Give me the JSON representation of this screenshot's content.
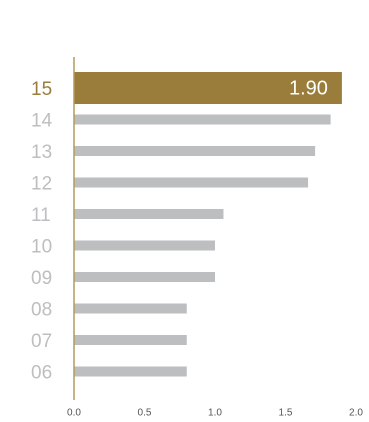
{
  "chart_data": {
    "type": "bar",
    "orientation": "horizontal",
    "categories": [
      "15",
      "14",
      "13",
      "12",
      "11",
      "10",
      "09",
      "08",
      "07",
      "06"
    ],
    "values": [
      1.9,
      1.82,
      1.71,
      1.66,
      1.06,
      1.0,
      1.0,
      0.8,
      0.8,
      0.8
    ],
    "value_labels": [
      "1.90",
      null,
      null,
      null,
      null,
      null,
      null,
      null,
      null,
      null
    ],
    "colors": [
      "#9a7d3a",
      "#bdbec0",
      "#bdbec0",
      "#bdbec0",
      "#bdbec0",
      "#bdbec0",
      "#bdbec0",
      "#bdbec0",
      "#bdbec0",
      "#bdbec0"
    ],
    "xlim": [
      0,
      2
    ],
    "xticks": [
      {
        "value": 0,
        "label": "0.0"
      },
      {
        "value": 0.5,
        "label": "0.5"
      },
      {
        "value": 1,
        "label": "1.0"
      },
      {
        "value": 1.5,
        "label": "1.5"
      },
      {
        "value": 2,
        "label": "2.0"
      }
    ],
    "grid": false
  }
}
